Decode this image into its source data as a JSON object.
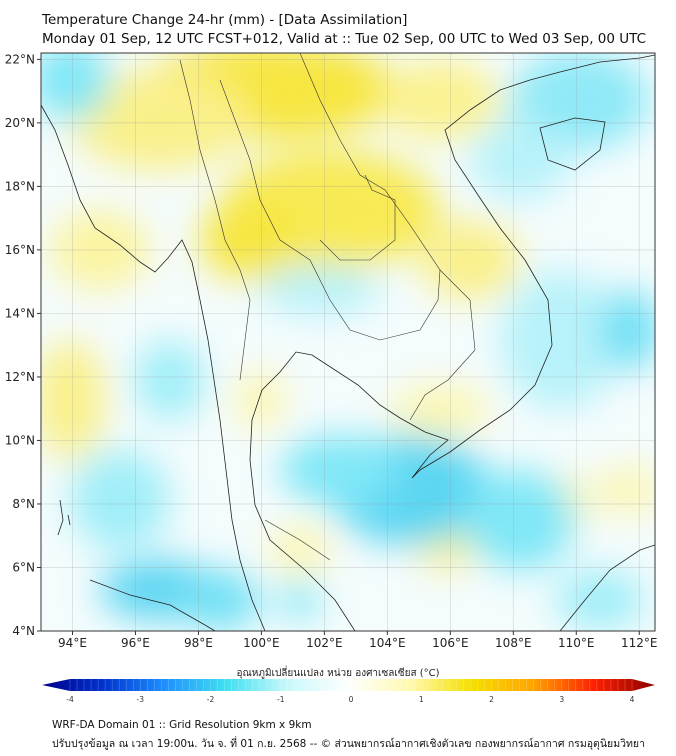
{
  "header": {
    "title": "Temperature Change 24-hr (mm) - [Data Assimilation]",
    "subtitle": "Monday 01 Sep, 12 UTC FCST+012, Valid at :: Tue 02 Sep, 00 UTC to Wed 03 Sep, 00 UTC"
  },
  "map": {
    "lat_ticks": [
      "22°N",
      "20°N",
      "18°N",
      "16°N",
      "14°N",
      "12°N",
      "10°N",
      "8°N",
      "6°N",
      "4°N"
    ],
    "lon_ticks": [
      "94°E",
      "96°E",
      "98°E",
      "100°E",
      "102°E",
      "104°E",
      "106°E",
      "108°E",
      "110°E",
      "112°E"
    ],
    "lat_range": [
      4,
      22.2
    ],
    "lon_range": [
      93,
      112.5
    ]
  },
  "colorbar": {
    "label": "อุณหภูมิเปลี่ยนแปลง หน่วย องศาเซลเซียส (°C)",
    "ticks": [
      "-4",
      "-3",
      "-2",
      "-1",
      "0",
      "1",
      "2",
      "3",
      "4"
    ],
    "range": [
      -4,
      4
    ],
    "colors": [
      "#00008b",
      "#0033cc",
      "#1e90ff",
      "#40e0f0",
      "#c8f8fa",
      "#ffffff",
      "#fff9b0",
      "#f5e000",
      "#ffa500",
      "#ff2000",
      "#8b0000"
    ]
  },
  "footer": {
    "line1": "WRF-DA Domain 01 :: Grid Resolution 9km x 9km",
    "line2": "ปรับปรุงข้อมูล ณ เวลา 19:00น. วัน จ. ที่ 01 ก.ย. 2568 -- © ส่วนพยากรณ์อากาศเชิงตัวเลข กองพยากรณ์อากาศ กรมอุตุนิยมวิทยา"
  }
}
